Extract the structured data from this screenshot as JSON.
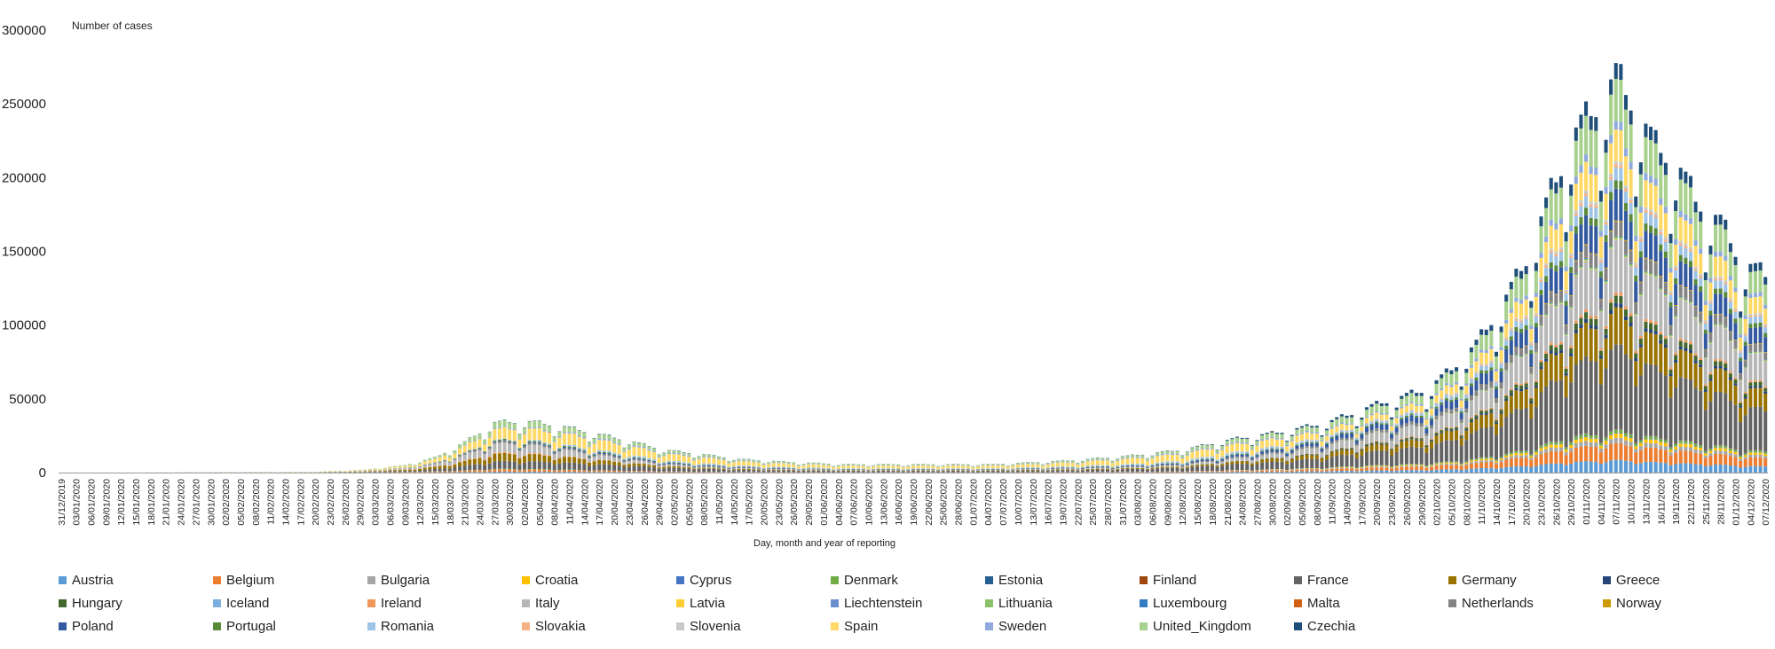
{
  "chart_data": {
    "type": "bar",
    "stacked": true,
    "title": "",
    "ylabel": "Number of cases",
    "xlabel": "Day, month and year of reporting",
    "ylim": [
      0,
      300000
    ],
    "yticks": [
      0,
      50000,
      100000,
      150000,
      200000,
      250000,
      300000
    ],
    "grid": false,
    "legend_position": "bottom",
    "x_first_date": "31/12/2019",
    "x_last_date": "07/12/2020",
    "x_tick_labels": [
      "31/12/2019",
      "03/01/2020",
      "06/01/2020",
      "09/01/2020",
      "12/01/2020",
      "15/01/2020",
      "18/01/2020",
      "21/01/2020",
      "24/01/2020",
      "27/01/2020",
      "30/01/2020",
      "02/02/2020",
      "05/02/2020",
      "08/02/2020",
      "11/02/2020",
      "14/02/2020",
      "17/02/2020",
      "20/02/2020",
      "23/02/2020",
      "26/02/2020",
      "29/02/2020",
      "03/03/2020",
      "06/03/2020",
      "09/03/2020",
      "12/03/2020",
      "15/03/2020",
      "18/03/2020",
      "21/03/2020",
      "24/03/2020",
      "27/03/2020",
      "30/03/2020",
      "02/04/2020",
      "05/04/2020",
      "08/04/2020",
      "11/04/2020",
      "14/04/2020",
      "17/04/2020",
      "20/04/2020",
      "23/04/2020",
      "26/04/2020",
      "29/04/2020",
      "02/05/2020",
      "05/05/2020",
      "08/05/2020",
      "11/05/2020",
      "14/05/2020",
      "17/05/2020",
      "20/05/2020",
      "23/05/2020",
      "26/05/2020",
      "29/05/2020",
      "01/06/2020",
      "04/06/2020",
      "07/06/2020",
      "10/06/2020",
      "13/06/2020",
      "16/06/2020",
      "19/06/2020",
      "22/06/2020",
      "25/06/2020",
      "28/06/2020",
      "01/07/2020",
      "04/07/2020",
      "07/07/2020",
      "10/07/2020",
      "13/07/2020",
      "16/07/2020",
      "19/07/2020",
      "22/07/2020",
      "25/07/2020",
      "28/07/2020",
      "31/07/2020",
      "03/08/2020",
      "06/08/2020",
      "09/08/2020",
      "12/08/2020",
      "15/08/2020",
      "18/08/2020",
      "21/08/2020",
      "24/08/2020",
      "27/08/2020",
      "30/08/2020",
      "02/09/2020",
      "05/09/2020",
      "08/09/2020",
      "11/09/2020",
      "14/09/2020",
      "17/09/2020",
      "20/09/2020",
      "23/09/2020",
      "26/09/2020",
      "29/09/2020",
      "02/10/2020",
      "05/10/2020",
      "08/10/2020",
      "11/10/2020",
      "14/10/2020",
      "17/10/2020",
      "20/10/2020",
      "23/10/2020",
      "26/10/2020",
      "29/10/2020",
      "01/11/2020",
      "04/11/2020",
      "07/11/2020",
      "10/11/2020",
      "13/11/2020",
      "16/11/2020",
      "19/11/2020",
      "22/11/2020",
      "25/11/2020",
      "28/11/2020",
      "01/12/2020",
      "04/12/2020",
      "07/12/2020"
    ],
    "total_keypoints": [
      [
        "31/12/2019",
        0
      ],
      [
        "20/02/2020",
        500
      ],
      [
        "01/03/2020",
        2000
      ],
      [
        "09/03/2020",
        5000
      ],
      [
        "15/03/2020",
        10000
      ],
      [
        "21/03/2020",
        20000
      ],
      [
        "27/03/2020",
        33000
      ],
      [
        "02/04/2020",
        34000
      ],
      [
        "09/04/2020",
        31000
      ],
      [
        "16/04/2020",
        26000
      ],
      [
        "23/04/2020",
        21000
      ],
      [
        "30/04/2020",
        15000
      ],
      [
        "08/05/2020",
        12000
      ],
      [
        "15/05/2020",
        9000
      ],
      [
        "25/05/2020",
        7000
      ],
      [
        "05/06/2020",
        5500
      ],
      [
        "20/06/2020",
        5500
      ],
      [
        "05/07/2020",
        5500
      ],
      [
        "20/07/2020",
        8000
      ],
      [
        "01/08/2020",
        11000
      ],
      [
        "12/08/2020",
        15000
      ],
      [
        "22/08/2020",
        22000
      ],
      [
        "01/09/2020",
        27000
      ],
      [
        "10/09/2020",
        33000
      ],
      [
        "20/09/2020",
        45000
      ],
      [
        "30/09/2020",
        55000
      ],
      [
        "05/10/2020",
        68000
      ],
      [
        "10/10/2020",
        85000
      ],
      [
        "15/10/2020",
        110000
      ],
      [
        "20/10/2020",
        140000
      ],
      [
        "25/10/2020",
        185000
      ],
      [
        "30/10/2020",
        225000
      ],
      [
        "04/11/2020",
        245000
      ],
      [
        "07/11/2020",
        262000
      ],
      [
        "11/11/2020",
        240000
      ],
      [
        "15/11/2020",
        215000
      ],
      [
        "19/11/2020",
        205000
      ],
      [
        "23/11/2020",
        180000
      ],
      [
        "28/11/2020",
        165000
      ],
      [
        "02/12/2020",
        140000
      ],
      [
        "07/12/2020",
        130000
      ]
    ],
    "series": [
      {
        "name": "Austria",
        "color": "#5B9BD5"
      },
      {
        "name": "Belgium",
        "color": "#ED7D31"
      },
      {
        "name": "Bulgaria",
        "color": "#A5A5A5"
      },
      {
        "name": "Croatia",
        "color": "#FFC000"
      },
      {
        "name": "Cyprus",
        "color": "#4472C4"
      },
      {
        "name": "Denmark",
        "color": "#70AD47"
      },
      {
        "name": "Estonia",
        "color": "#255E91"
      },
      {
        "name": "Finland",
        "color": "#9E480E"
      },
      {
        "name": "France",
        "color": "#636363"
      },
      {
        "name": "Germany",
        "color": "#997300"
      },
      {
        "name": "Greece",
        "color": "#264478"
      },
      {
        "name": "Hungary",
        "color": "#43682B"
      },
      {
        "name": "Iceland",
        "color": "#7CAFDD"
      },
      {
        "name": "Ireland",
        "color": "#F1975A"
      },
      {
        "name": "Italy",
        "color": "#B7B7B7"
      },
      {
        "name": "Latvia",
        "color": "#FFCD33"
      },
      {
        "name": "Liechtenstein",
        "color": "#698ED0"
      },
      {
        "name": "Lithuania",
        "color": "#8CC168"
      },
      {
        "name": "Luxembourg",
        "color": "#327DC2"
      },
      {
        "name": "Malta",
        "color": "#D26012"
      },
      {
        "name": "Netherlands",
        "color": "#848484"
      },
      {
        "name": "Norway",
        "color": "#CC9A00"
      },
      {
        "name": "Poland",
        "color": "#335AA1"
      },
      {
        "name": "Portugal",
        "color": "#5A8A39"
      },
      {
        "name": "Romania",
        "color": "#9DC3E6"
      },
      {
        "name": "Slovakia",
        "color": "#F4B183"
      },
      {
        "name": "Slovenia",
        "color": "#C9C9C9"
      },
      {
        "name": "Spain",
        "color": "#FFD966"
      },
      {
        "name": "Sweden",
        "color": "#8FAADC"
      },
      {
        "name": "United_Kingdom",
        "color": "#A9D18E"
      },
      {
        "name": "Czechia",
        "color": "#1F4E79"
      }
    ]
  }
}
